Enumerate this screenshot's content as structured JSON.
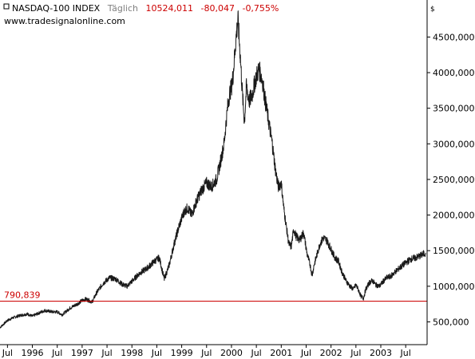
{
  "header": {
    "symbol": "NASDAQ-100 INDEX",
    "period": "Täglich",
    "last": "10524,011",
    "change": "-80,047",
    "change_pct": "-0,755%",
    "website": "www.tradesignalonline.com"
  },
  "colors": {
    "line": "#1a1a1a",
    "level_line": "#cc0000",
    "change_text": "#cc0000",
    "period_text": "#808080",
    "frame": "#000000"
  },
  "chart_data": {
    "type": "line",
    "title": "NASDAQ-100 INDEX",
    "ylabel": "$",
    "xlabel": "",
    "xlim": [
      1995.35,
      2003.93
    ],
    "ylim": [
      180000,
      5020000
    ],
    "x_ticks": [
      {
        "label": "Jul",
        "x": 1995.5
      },
      {
        "label": "1996",
        "x": 1996.0
      },
      {
        "label": "Jul",
        "x": 1996.5
      },
      {
        "label": "1997",
        "x": 1997.0
      },
      {
        "label": "Jul",
        "x": 1997.5
      },
      {
        "label": "1998",
        "x": 1998.0
      },
      {
        "label": "Jul",
        "x": 1998.5
      },
      {
        "label": "1999",
        "x": 1999.0
      },
      {
        "label": "Jul",
        "x": 1999.5
      },
      {
        "label": "2000",
        "x": 2000.0
      },
      {
        "label": "Jul",
        "x": 2000.5
      },
      {
        "label": "2001",
        "x": 2001.0
      },
      {
        "label": "Jul",
        "x": 2001.5
      },
      {
        "label": "2002",
        "x": 2002.0
      },
      {
        "label": "Jul",
        "x": 2002.5
      },
      {
        "label": "2003",
        "x": 2003.0
      },
      {
        "label": "Jul",
        "x": 2003.5
      }
    ],
    "y_ticks": [
      {
        "label": "500,000",
        "value": 500000
      },
      {
        "label": "1000,000",
        "value": 1000000
      },
      {
        "label": "1500,000",
        "value": 1500000
      },
      {
        "label": "2000,000",
        "value": 2000000
      },
      {
        "label": "2500,000",
        "value": 2500000
      },
      {
        "label": "3000,000",
        "value": 3000000
      },
      {
        "label": "3500,000",
        "value": 3500000
      },
      {
        "label": "4000,000",
        "value": 4000000
      },
      {
        "label": "4500,000",
        "value": 4500000
      }
    ],
    "level": {
      "value": 790839,
      "label": "790,839"
    },
    "grid": false,
    "legend": "none",
    "series": [
      {
        "x": [
          1995.35,
          1995.5,
          1995.62,
          1995.75,
          1995.9,
          1996.0,
          1996.12,
          1996.25,
          1996.4,
          1996.5,
          1996.6,
          1996.75,
          1996.9,
          1997.0,
          1997.08,
          1997.2,
          1997.3,
          1997.42,
          1997.55,
          1997.68,
          1997.8,
          1997.9,
          1998.0,
          1998.15,
          1998.3,
          1998.45,
          1998.55,
          1998.65,
          1998.75,
          1998.85,
          1998.95,
          1999.05,
          1999.12,
          1999.2,
          1999.3,
          1999.4,
          1999.5,
          1999.6,
          1999.7,
          1999.78,
          1999.85,
          1999.92,
          1999.96,
          2000.0,
          2000.03,
          2000.07,
          2000.1,
          2000.13,
          2000.18,
          2000.22,
          2000.26,
          2000.3,
          2000.36,
          2000.42,
          2000.48,
          2000.55,
          2000.62,
          2000.68,
          2000.75,
          2000.82,
          2000.88,
          2000.94,
          2001.0,
          2001.05,
          2001.1,
          2001.15,
          2001.2,
          2001.25,
          2001.3,
          2001.37,
          2001.45,
          2001.52,
          2001.58,
          2001.62,
          2001.66,
          2001.72,
          2001.78,
          2001.85,
          2001.92,
          2002.0,
          2002.08,
          2002.15,
          2002.22,
          2002.3,
          2002.38,
          2002.45,
          2002.5,
          2002.55,
          2002.6,
          2002.65,
          2002.7,
          2002.77,
          2002.83,
          2002.9,
          2002.97,
          2003.05,
          2003.12,
          2003.2,
          2003.3,
          2003.4,
          2003.5,
          2003.6,
          2003.7,
          2003.8,
          2003.9
        ],
        "values": [
          420000,
          520000,
          560000,
          590000,
          610000,
          580000,
          620000,
          660000,
          640000,
          640000,
          600000,
          690000,
          750000,
          800000,
          820000,
          780000,
          920000,
          1040000,
          1120000,
          1100000,
          1030000,
          1000000,
          1070000,
          1180000,
          1250000,
          1350000,
          1400000,
          1100000,
          1300000,
          1600000,
          1850000,
          2050000,
          2100000,
          2000000,
          2200000,
          2350000,
          2450000,
          2400000,
          2500000,
          2750000,
          3000000,
          3500000,
          3700000,
          3800000,
          3950000,
          4300000,
          4550000,
          4750000,
          4200000,
          3700000,
          3300000,
          3800000,
          3600000,
          3700000,
          3900000,
          4050000,
          3900000,
          3600000,
          3300000,
          3000000,
          2650000,
          2400000,
          2450000,
          2100000,
          1850000,
          1600000,
          1550000,
          1800000,
          1700000,
          1650000,
          1750000,
          1450000,
          1300000,
          1150000,
          1300000,
          1450000,
          1600000,
          1680000,
          1640000,
          1520000,
          1400000,
          1350000,
          1200000,
          1080000,
          1000000,
          960000,
          1020000,
          950000,
          860000,
          830000,
          960000,
          1050000,
          1080000,
          1020000,
          1000000,
          1070000,
          1120000,
          1140000,
          1210000,
          1270000,
          1330000,
          1380000,
          1400000,
          1430000,
          1470000
        ]
      }
    ]
  }
}
